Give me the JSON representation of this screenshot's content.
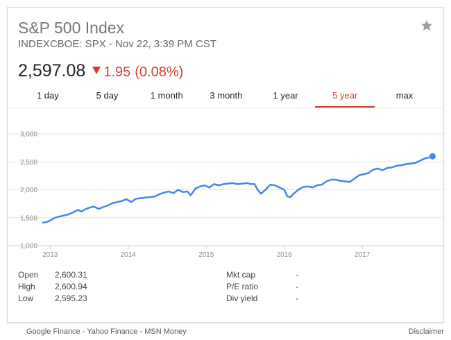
{
  "header": {
    "title": "S&P 500 Index",
    "subtitle": "INDEXCBOE: SPX - Nov 22, 3:39 PM CST",
    "price": "2,597.08",
    "change": "1.95",
    "change_pct": "(0.08%)",
    "change_direction": "down",
    "star_icon": "star-icon"
  },
  "tabs": [
    {
      "label": "1 day",
      "active": false
    },
    {
      "label": "5 day",
      "active": false
    },
    {
      "label": "1 month",
      "active": false
    },
    {
      "label": "3 month",
      "active": false
    },
    {
      "label": "1 year",
      "active": false
    },
    {
      "label": "5 year",
      "active": true
    },
    {
      "label": "max",
      "active": false
    }
  ],
  "stats": {
    "left": [
      {
        "label": "Open",
        "value": "2,600.31"
      },
      {
        "label": "High",
        "value": "2,600.94"
      },
      {
        "label": "Low",
        "value": "2,595.23"
      }
    ],
    "right": [
      {
        "label": "Mkt cap",
        "value": "-"
      },
      {
        "label": "P/E ratio",
        "value": "-"
      },
      {
        "label": "Div yield",
        "value": "-"
      }
    ]
  },
  "footer": {
    "sources": "Google Finance - Yahoo Finance - MSN Money",
    "disclaimer": "Disclaimer"
  },
  "colors": {
    "line": "#4285f4",
    "negative": "#d23f31",
    "grid": "#e6e6e6"
  },
  "chart_data": {
    "type": "line",
    "ylim": [
      1000,
      3000
    ],
    "yticks": [
      1000,
      1500,
      2000,
      2500,
      3000
    ],
    "ytick_labels": [
      "1,000",
      "1,500",
      "2,000",
      "2,500",
      "3,000"
    ],
    "xlim": [
      2012.9,
      2017.95
    ],
    "xticks": [
      2013,
      2014,
      2015,
      2016,
      2017
    ],
    "xtick_labels": [
      "2013",
      "2014",
      "2015",
      "2016",
      "2017"
    ],
    "grid": true,
    "series": [
      {
        "x": [
          2012.9,
          2012.96,
          2013.0,
          2013.06,
          2013.12,
          2013.18,
          2013.24,
          2013.3,
          2013.36,
          2013.4,
          2013.45,
          2013.5,
          2013.56,
          2013.62,
          2013.68,
          2013.74,
          2013.8,
          2013.86,
          2013.92,
          2013.98,
          2014.04,
          2014.1,
          2014.16,
          2014.22,
          2014.28,
          2014.34,
          2014.4,
          2014.46,
          2014.52,
          2014.58,
          2014.64,
          2014.7,
          2014.76,
          2014.8,
          2014.86,
          2014.92,
          2014.98,
          2015.04,
          2015.1,
          2015.16,
          2015.22,
          2015.28,
          2015.34,
          2015.4,
          2015.46,
          2015.52,
          2015.58,
          2015.62,
          2015.66,
          2015.7,
          2015.76,
          2015.82,
          2015.88,
          2015.94,
          2016.0,
          2016.04,
          2016.08,
          2016.12,
          2016.18,
          2016.24,
          2016.3,
          2016.36,
          2016.42,
          2016.48,
          2016.54,
          2016.6,
          2016.66,
          2016.72,
          2016.78,
          2016.84,
          2016.9,
          2016.96,
          2017.02,
          2017.08,
          2017.14,
          2017.2,
          2017.26,
          2017.32,
          2017.38,
          2017.44,
          2017.5,
          2017.56,
          2017.62,
          2017.68,
          2017.74,
          2017.8,
          2017.86,
          2017.9
        ],
        "y": [
          1410,
          1425,
          1450,
          1500,
          1520,
          1540,
          1560,
          1600,
          1640,
          1610,
          1650,
          1680,
          1700,
          1660,
          1690,
          1720,
          1760,
          1780,
          1800,
          1830,
          1780,
          1840,
          1850,
          1860,
          1870,
          1880,
          1920,
          1950,
          1970,
          1940,
          2000,
          1960,
          1970,
          1900,
          2020,
          2060,
          2080,
          2040,
          2100,
          2080,
          2100,
          2110,
          2120,
          2100,
          2110,
          2120,
          2100,
          2100,
          2000,
          1930,
          2000,
          2090,
          2080,
          2040,
          2000,
          1880,
          1870,
          1930,
          2000,
          2050,
          2060,
          2040,
          2080,
          2090,
          2150,
          2180,
          2180,
          2160,
          2150,
          2140,
          2200,
          2260,
          2280,
          2300,
          2360,
          2380,
          2350,
          2390,
          2400,
          2430,
          2440,
          2460,
          2470,
          2480,
          2520,
          2560,
          2580,
          2600
        ]
      }
    ]
  }
}
